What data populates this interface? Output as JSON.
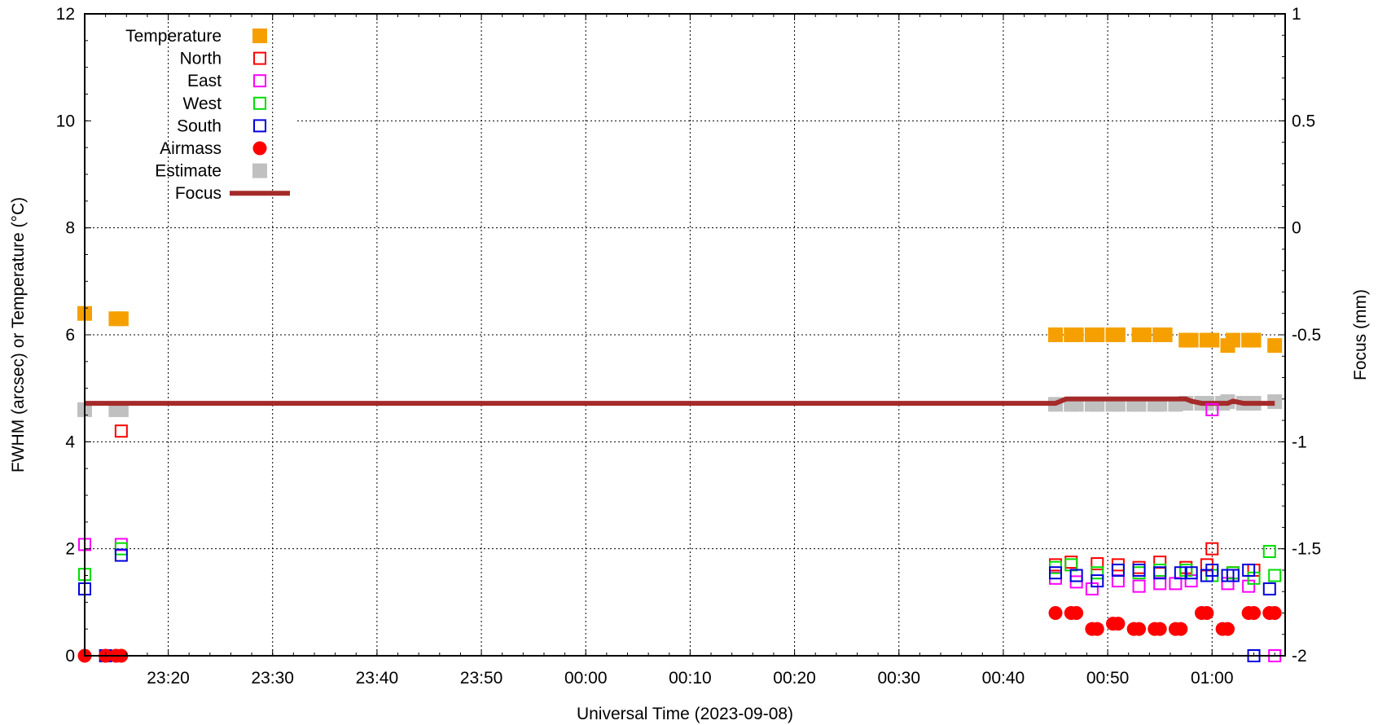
{
  "chart_data": {
    "type": "scatter",
    "xlabel": "Universal Time (2023-09-08)",
    "ylabel": "FWHM (arcsec) or Temperature (°C)",
    "y2label": "Focus (mm)",
    "x_range": [
      "23:12",
      "01:07"
    ],
    "ylim": [
      0,
      12
    ],
    "y2lim": [
      -2,
      1
    ],
    "x_ticks": [
      "23:20",
      "23:30",
      "23:40",
      "23:50",
      "00:00",
      "00:10",
      "00:20",
      "00:30",
      "00:40",
      "00:50",
      "01:00"
    ],
    "y_ticks": [
      0,
      2,
      4,
      6,
      8,
      10,
      12
    ],
    "y2_ticks": [
      -2,
      -1.5,
      -1,
      -0.5,
      0,
      0.5,
      1
    ],
    "grid": true,
    "legend_position": "top-left",
    "series": [
      {
        "name": "Temperature",
        "marker": "filled-square",
        "color": "#f5a000",
        "points": [
          [
            "23:12",
            6.4
          ],
          [
            "23:15",
            6.3
          ],
          [
            "23:15.5",
            6.3
          ],
          [
            "00:45",
            6.0
          ],
          [
            "00:46.5",
            6.0
          ],
          [
            "00:47",
            6.0
          ],
          [
            "00:48.5",
            6.0
          ],
          [
            "00:49",
            6.0
          ],
          [
            "00:50.5",
            6.0
          ],
          [
            "00:51",
            6.0
          ],
          [
            "00:53",
            6.0
          ],
          [
            "00:53.5",
            6.0
          ],
          [
            "00:55",
            6.0
          ],
          [
            "00:55.5",
            6.0
          ],
          [
            "00:57.5",
            5.9
          ],
          [
            "00:58",
            5.9
          ],
          [
            "00:59.5",
            5.9
          ],
          [
            "01:00",
            5.9
          ],
          [
            "01:01.5",
            5.8
          ],
          [
            "01:02",
            5.9
          ],
          [
            "01:03.5",
            5.9
          ],
          [
            "01:04",
            5.9
          ],
          [
            "01:06",
            5.8
          ]
        ]
      },
      {
        "name": "North",
        "marker": "open-square",
        "color": "#ff0000",
        "points": [
          [
            "23:15.5",
            4.2
          ],
          [
            "00:45",
            1.7
          ],
          [
            "00:46.5",
            1.75
          ],
          [
            "00:49",
            1.72
          ],
          [
            "00:51",
            1.7
          ],
          [
            "00:53",
            1.65
          ],
          [
            "00:55",
            1.75
          ],
          [
            "00:57.5",
            1.65
          ],
          [
            "00:59.5",
            1.7
          ],
          [
            "01:00",
            2.0
          ],
          [
            "01:02",
            1.55
          ],
          [
            "01:04",
            1.6
          ]
        ]
      },
      {
        "name": "East",
        "marker": "open-square",
        "color": "#ff00ff",
        "points": [
          [
            "23:12",
            2.08
          ],
          [
            "23:15.5",
            2.08
          ],
          [
            "00:45",
            1.45
          ],
          [
            "00:47",
            1.38
          ],
          [
            "00:48.5",
            1.25
          ],
          [
            "00:51",
            1.4
          ],
          [
            "00:53",
            1.3
          ],
          [
            "00:55",
            1.35
          ],
          [
            "00:56.5",
            1.35
          ],
          [
            "00:58",
            1.4
          ],
          [
            "01:00",
            4.6
          ],
          [
            "01:01.5",
            1.35
          ],
          [
            "01:03.5",
            1.3
          ],
          [
            "01:06",
            0.0
          ]
        ]
      },
      {
        "name": "West",
        "marker": "open-square",
        "color": "#00dd00",
        "points": [
          [
            "23:12",
            1.52
          ],
          [
            "23:15.5",
            2.0
          ],
          [
            "00:45",
            1.65
          ],
          [
            "00:46.5",
            1.7
          ],
          [
            "00:49",
            1.55
          ],
          [
            "00:51",
            1.6
          ],
          [
            "00:53",
            1.55
          ],
          [
            "00:55",
            1.6
          ],
          [
            "00:57.5",
            1.6
          ],
          [
            "01:00",
            1.5
          ],
          [
            "01:02",
            1.55
          ],
          [
            "01:04",
            1.45
          ],
          [
            "01:05.5",
            1.95
          ],
          [
            "01:06",
            1.5
          ]
        ]
      },
      {
        "name": "South",
        "marker": "open-square",
        "color": "#0000dd",
        "points": [
          [
            "23:12",
            1.25
          ],
          [
            "23:14",
            0.0
          ],
          [
            "23:15.5",
            1.88
          ],
          [
            "00:45",
            1.55
          ],
          [
            "00:47",
            1.5
          ],
          [
            "00:49",
            1.4
          ],
          [
            "00:51",
            1.6
          ],
          [
            "00:53",
            1.6
          ],
          [
            "00:55",
            1.55
          ],
          [
            "00:57",
            1.55
          ],
          [
            "00:58",
            1.55
          ],
          [
            "00:59.5",
            1.5
          ],
          [
            "01:00",
            1.6
          ],
          [
            "01:01.5",
            1.5
          ],
          [
            "01:02",
            1.5
          ],
          [
            "01:03.5",
            1.6
          ],
          [
            "01:04",
            0.0
          ],
          [
            "01:05.5",
            1.25
          ]
        ]
      },
      {
        "name": "Airmass",
        "marker": "filled-circle",
        "color": "#ff0000",
        "points": [
          [
            "23:12",
            0.0
          ],
          [
            "23:14",
            0.0
          ],
          [
            "23:15",
            0.0
          ],
          [
            "23:15.5",
            0.0
          ],
          [
            "00:45",
            0.8
          ],
          [
            "00:46.5",
            0.8
          ],
          [
            "00:47",
            0.8
          ],
          [
            "00:48.5",
            0.5
          ],
          [
            "00:49",
            0.5
          ],
          [
            "00:50.5",
            0.6
          ],
          [
            "00:51",
            0.6
          ],
          [
            "00:52.5",
            0.5
          ],
          [
            "00:53",
            0.5
          ],
          [
            "00:54.5",
            0.5
          ],
          [
            "00:55",
            0.5
          ],
          [
            "00:56.5",
            0.5
          ],
          [
            "00:57",
            0.5
          ],
          [
            "00:59",
            0.8
          ],
          [
            "00:59.5",
            0.8
          ],
          [
            "01:01",
            0.5
          ],
          [
            "01:01.5",
            0.5
          ],
          [
            "01:03.5",
            0.8
          ],
          [
            "01:04",
            0.8
          ],
          [
            "01:05.5",
            0.8
          ],
          [
            "01:06",
            0.8
          ]
        ]
      },
      {
        "name": "Estimate",
        "marker": "filled-square",
        "color": "#c0c0c0",
        "points": [
          [
            "23:12",
            4.6
          ],
          [
            "23:15",
            4.6
          ],
          [
            "23:15.5",
            4.6
          ],
          [
            "00:45",
            4.7
          ],
          [
            "00:46.5",
            4.7
          ],
          [
            "00:47",
            4.7
          ],
          [
            "00:48.5",
            4.7
          ],
          [
            "00:49",
            4.7
          ],
          [
            "00:50.5",
            4.7
          ],
          [
            "00:51",
            4.7
          ],
          [
            "00:52.5",
            4.7
          ],
          [
            "00:53",
            4.7
          ],
          [
            "00:54.5",
            4.7
          ],
          [
            "00:55",
            4.7
          ],
          [
            "00:56.5",
            4.7
          ],
          [
            "00:57.5",
            4.72
          ],
          [
            "00:59",
            4.72
          ],
          [
            "00:59.5",
            4.72
          ],
          [
            "01:01",
            4.72
          ],
          [
            "01:01.5",
            4.75
          ],
          [
            "01:03",
            4.72
          ],
          [
            "01:04",
            4.72
          ],
          [
            "01:06",
            4.75
          ]
        ]
      },
      {
        "name": "Focus",
        "marker": "line",
        "color": "#a52a2a",
        "axis": "y2",
        "points": [
          [
            "23:12",
            -0.82
          ],
          [
            "00:44.5",
            -0.82
          ],
          [
            "00:45",
            -0.82
          ],
          [
            "00:46",
            -0.8
          ],
          [
            "00:47",
            -0.8
          ],
          [
            "00:50",
            -0.8
          ],
          [
            "00:55",
            -0.8
          ],
          [
            "00:57.5",
            -0.8
          ],
          [
            "00:58",
            -0.81
          ],
          [
            "00:59",
            -0.82
          ],
          [
            "01:00.5",
            -0.82
          ],
          [
            "01:01.5",
            -0.82
          ],
          [
            "01:02",
            -0.81
          ],
          [
            "01:03",
            -0.82
          ],
          [
            "01:06",
            -0.82
          ]
        ]
      }
    ]
  }
}
